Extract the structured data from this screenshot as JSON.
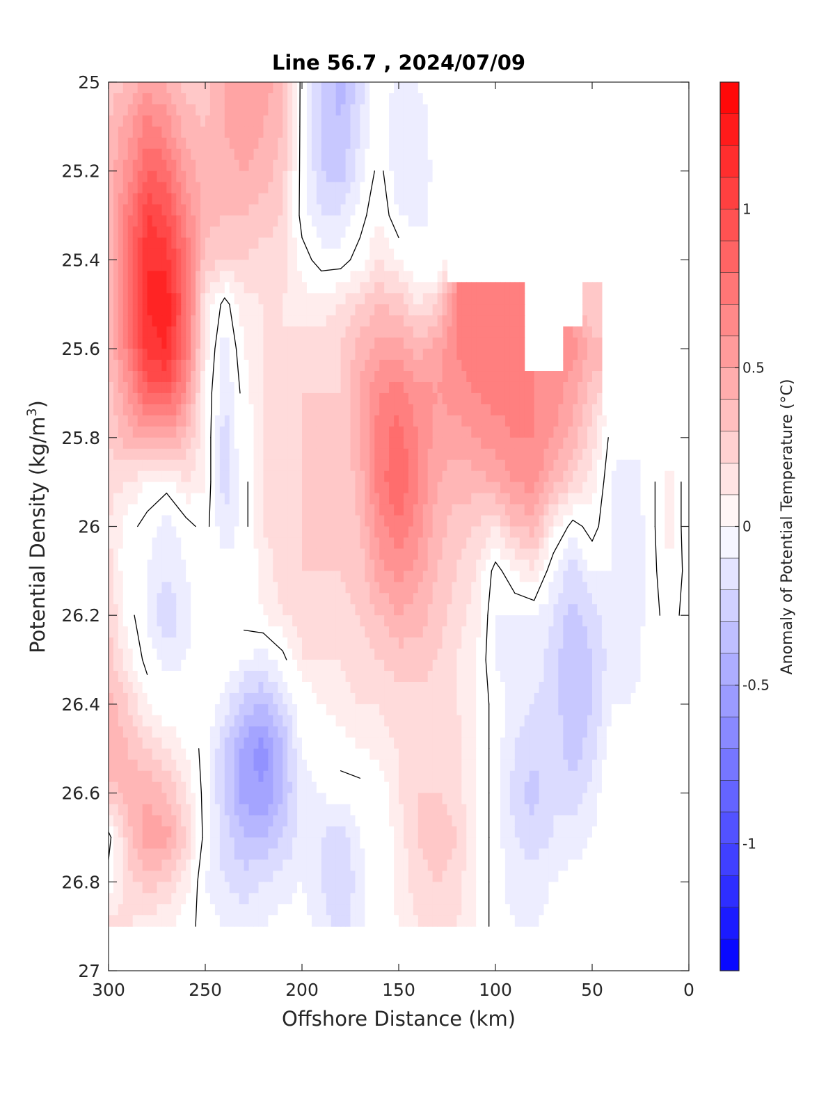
{
  "chart_data": {
    "type": "heatmap",
    "title": "Line 56.7 , 2024/07/09",
    "xlabel": "Offshore Distance (km)",
    "ylabel_main": "Potential Density (kg/m",
    "ylabel_sup": "3",
    "ylabel_close": ")",
    "colorbar_label": "Anomaly of Potential Temperature (°C)",
    "xlim": [
      300,
      0
    ],
    "ylim": [
      25,
      27
    ],
    "x_reversed": true,
    "y_reversed": true,
    "x_ticks": [
      300,
      250,
      200,
      150,
      100,
      50,
      0
    ],
    "x_tick_labels": [
      "300",
      "250",
      "200",
      "150",
      "100",
      "50",
      "0"
    ],
    "y_ticks": [
      25,
      25.2,
      25.4,
      25.6,
      25.8,
      26,
      26.2,
      26.4,
      26.6,
      26.8,
      27
    ],
    "y_tick_labels": [
      "25",
      "25.2",
      "25.4",
      "25.6",
      "25.8",
      "26",
      "26.2",
      "26.4",
      "26.6",
      "26.8",
      "27"
    ],
    "clim": [
      -1.4,
      1.4
    ],
    "colorbar_ticks": [
      1,
      0.5,
      0,
      -0.5,
      -1
    ],
    "colorbar_tick_labels": [
      "1",
      "0.5",
      "0",
      "-0.5",
      "-1"
    ],
    "grid": false,
    "colormap": "blue-white-red",
    "color_high": "#ff0000",
    "color_low": "#0000ff",
    "color_mid": "#ffffff",
    "contour_levels": [
      0
    ],
    "data_bottom_density": 26.9,
    "stations_x": [
      300,
      290,
      280,
      270,
      260,
      250,
      240,
      230,
      220,
      210,
      200,
      190,
      180,
      170,
      160,
      150,
      140,
      130,
      120,
      110,
      100,
      90,
      80,
      70,
      60,
      50,
      40,
      30,
      20,
      10,
      0
    ],
    "density_levels": [
      25.0,
      25.1,
      25.2,
      25.3,
      25.4,
      25.5,
      25.6,
      25.7,
      25.8,
      25.9,
      26.0,
      26.1,
      26.2,
      26.3,
      26.4,
      26.5,
      26.6,
      26.7,
      26.8,
      26.9
    ],
    "valid_top_density": [
      25.0,
      25.0,
      25.0,
      25.0,
      25.0,
      25.0,
      25.0,
      25.0,
      25.0,
      25.0,
      25.0,
      25.0,
      25.0,
      25.0,
      25.0,
      25.0,
      25.0,
      25.0,
      25.5,
      25.5,
      25.5,
      25.5,
      25.7,
      25.7,
      25.6,
      25.5,
      25.9,
      25.9,
      25.9,
      25.9,
      25.9
    ],
    "anomaly": [
      [
        0.35,
        0.4,
        0.55,
        0.5,
        0.35,
        0.35,
        0.5,
        0.6,
        0.55,
        0.45,
        -0.05,
        -0.3,
        -0.45,
        -0.25,
        0.0,
        -0.15,
        -0.1,
        -0.05,
        null,
        null,
        null,
        null,
        null,
        null,
        null,
        null,
        null,
        null,
        null,
        null,
        null
      ],
      [
        0.4,
        0.55,
        0.75,
        0.65,
        0.45,
        0.4,
        0.5,
        0.55,
        0.5,
        0.4,
        -0.05,
        -0.3,
        -0.4,
        -0.2,
        0.0,
        -0.2,
        -0.15,
        -0.05,
        null,
        null,
        null,
        null,
        null,
        null,
        null,
        null,
        null,
        null,
        null,
        null,
        null
      ],
      [
        0.45,
        0.65,
        0.9,
        0.85,
        0.55,
        0.45,
        0.45,
        0.5,
        0.45,
        0.35,
        -0.05,
        -0.3,
        -0.35,
        -0.15,
        0.05,
        -0.2,
        -0.2,
        -0.05,
        null,
        null,
        null,
        null,
        null,
        null,
        null,
        null,
        null,
        null,
        null,
        null,
        null
      ],
      [
        0.45,
        0.75,
        1.1,
        1.0,
        0.7,
        0.45,
        0.4,
        0.4,
        0.35,
        0.3,
        -0.05,
        -0.2,
        -0.2,
        -0.05,
        0.1,
        -0.1,
        -0.15,
        -0.05,
        null,
        null,
        null,
        null,
        null,
        null,
        null,
        null,
        null,
        null,
        null,
        null,
        null
      ],
      [
        0.45,
        0.8,
        1.2,
        1.15,
        0.8,
        0.35,
        0.3,
        0.3,
        0.25,
        0.25,
        0.05,
        -0.05,
        -0.05,
        0.05,
        0.2,
        0.1,
        0.0,
        -0.05,
        null,
        null,
        null,
        null,
        null,
        null,
        null,
        null,
        null,
        null,
        null,
        null,
        null
      ],
      [
        0.4,
        0.8,
        1.2,
        1.3,
        0.85,
        0.2,
        -0.05,
        0.15,
        0.2,
        0.2,
        0.15,
        0.15,
        0.2,
        0.3,
        0.4,
        0.35,
        0.2,
        0.3,
        0.7,
        0.7,
        0.7,
        0.7,
        null,
        null,
        null,
        0.3,
        null,
        null,
        null,
        null,
        null
      ],
      [
        0.4,
        0.75,
        1.15,
        1.2,
        0.8,
        0.15,
        -0.15,
        0.1,
        0.2,
        0.2,
        0.25,
        0.25,
        0.3,
        0.45,
        0.55,
        0.55,
        0.45,
        0.55,
        0.7,
        0.75,
        0.75,
        0.75,
        null,
        null,
        0.65,
        0.45,
        null,
        null,
        null,
        null,
        null
      ],
      [
        0.35,
        0.6,
        0.9,
        0.95,
        0.65,
        0.1,
        -0.2,
        0.05,
        0.2,
        0.25,
        0.3,
        0.3,
        0.3,
        0.5,
        0.7,
        0.75,
        0.65,
        0.6,
        0.65,
        0.7,
        0.75,
        0.75,
        0.7,
        0.65,
        0.55,
        0.35,
        null,
        null,
        null,
        null,
        null
      ],
      [
        0.3,
        0.45,
        0.55,
        0.55,
        0.4,
        0.1,
        -0.25,
        0.0,
        0.2,
        0.25,
        0.3,
        0.3,
        0.3,
        0.5,
        0.75,
        0.85,
        0.7,
        0.55,
        0.55,
        0.6,
        0.65,
        0.7,
        0.7,
        0.6,
        0.45,
        0.25,
        -0.05,
        null,
        null,
        null,
        null
      ],
      [
        0.25,
        0.2,
        0.1,
        0.05,
        0.2,
        0.1,
        -0.25,
        -0.05,
        0.2,
        0.25,
        0.3,
        0.3,
        0.3,
        0.45,
        0.75,
        0.9,
        0.7,
        0.5,
        0.45,
        0.45,
        0.5,
        0.6,
        0.65,
        0.45,
        0.3,
        0.15,
        -0.1,
        -0.15,
        -0.05,
        0.15,
        -0.1
      ],
      [
        0.2,
        0.05,
        -0.05,
        -0.15,
        -0.05,
        0.05,
        -0.2,
        -0.05,
        0.2,
        0.25,
        0.3,
        0.3,
        0.35,
        0.4,
        0.65,
        0.8,
        0.65,
        0.45,
        0.35,
        0.3,
        0.2,
        0.4,
        0.45,
        0.15,
        -0.05,
        0.05,
        -0.1,
        -0.2,
        -0.05,
        0.15,
        -0.1
      ],
      [
        0.25,
        0.0,
        -0.1,
        -0.2,
        -0.1,
        0.0,
        -0.05,
        0.0,
        0.15,
        0.25,
        0.3,
        0.3,
        0.3,
        0.35,
        0.55,
        0.65,
        0.55,
        0.4,
        0.3,
        0.2,
        -0.05,
        0.1,
        0.2,
        -0.1,
        -0.25,
        -0.1,
        -0.1,
        -0.2,
        -0.05,
        0.1,
        -0.05
      ],
      [
        0.3,
        0.05,
        -0.1,
        -0.3,
        -0.15,
        0.0,
        0.1,
        0.05,
        0.1,
        0.2,
        0.25,
        0.25,
        0.25,
        0.3,
        0.4,
        0.5,
        0.45,
        0.35,
        0.25,
        0.15,
        -0.1,
        -0.1,
        -0.1,
        -0.2,
        -0.35,
        -0.25,
        -0.1,
        -0.2,
        -0.05,
        0.05,
        -0.05
      ],
      [
        0.35,
        0.15,
        -0.05,
        -0.15,
        -0.1,
        0.0,
        0.0,
        -0.1,
        -0.15,
        -0.05,
        0.2,
        0.2,
        0.2,
        0.25,
        0.3,
        0.35,
        0.35,
        0.3,
        0.2,
        0.1,
        -0.1,
        -0.15,
        -0.15,
        -0.25,
        -0.4,
        -0.3,
        -0.15,
        -0.15,
        -0.05,
        0.0,
        -0.05
      ],
      [
        0.45,
        0.3,
        0.1,
        0.0,
        0.0,
        0.0,
        -0.15,
        -0.35,
        -0.4,
        -0.25,
        0.0,
        0.1,
        0.15,
        0.2,
        0.2,
        0.25,
        0.25,
        0.25,
        0.2,
        0.1,
        -0.05,
        -0.15,
        -0.2,
        -0.25,
        -0.4,
        -0.3,
        -0.1,
        -0.1,
        -0.05,
        -0.05,
        0.0
      ],
      [
        0.5,
        0.4,
        0.3,
        0.2,
        0.1,
        -0.05,
        -0.3,
        -0.55,
        -0.65,
        -0.4,
        -0.1,
        0.0,
        0.05,
        0.1,
        0.15,
        0.2,
        0.25,
        0.25,
        0.25,
        0.1,
        -0.05,
        -0.2,
        -0.25,
        -0.25,
        -0.35,
        -0.25,
        -0.05,
        -0.05,
        -0.05,
        -0.05,
        -0.05
      ],
      [
        0.35,
        0.45,
        0.5,
        0.4,
        0.2,
        -0.05,
        -0.3,
        -0.55,
        -0.6,
        -0.4,
        -0.15,
        -0.1,
        -0.05,
        -0.05,
        0.0,
        0.2,
        0.3,
        0.3,
        0.25,
        0.1,
        -0.05,
        -0.25,
        -0.35,
        -0.2,
        -0.25,
        -0.15,
        0.0,
        -0.05,
        -0.05,
        -0.05,
        -0.05
      ],
      [
        -0.05,
        0.35,
        0.55,
        0.55,
        0.3,
        -0.05,
        -0.25,
        -0.4,
        -0.4,
        -0.3,
        -0.15,
        -0.2,
        -0.25,
        -0.1,
        0.0,
        0.15,
        0.3,
        0.35,
        0.3,
        0.1,
        -0.05,
        -0.2,
        -0.25,
        -0.2,
        -0.15,
        -0.1,
        0.05,
        -0.05,
        -0.05,
        -0.05,
        -0.05
      ],
      [
        0.05,
        0.25,
        0.35,
        0.3,
        0.15,
        -0.1,
        -0.2,
        -0.25,
        -0.2,
        -0.15,
        -0.1,
        -0.2,
        -0.3,
        -0.15,
        0.0,
        0.15,
        0.25,
        0.3,
        0.25,
        0.1,
        -0.05,
        -0.15,
        -0.15,
        -0.1,
        -0.05,
        -0.05,
        0.0,
        -0.05,
        -0.05,
        -0.05,
        -0.05
      ],
      [
        0.25,
        0.2,
        0.15,
        0.1,
        0.05,
        -0.05,
        -0.1,
        -0.15,
        -0.1,
        -0.05,
        -0.05,
        -0.15,
        -0.25,
        -0.15,
        0.0,
        0.1,
        0.2,
        0.25,
        0.2,
        0.1,
        -0.05,
        -0.1,
        -0.1,
        -0.05,
        null,
        null,
        null,
        null,
        null,
        null,
        null
      ]
    ]
  }
}
